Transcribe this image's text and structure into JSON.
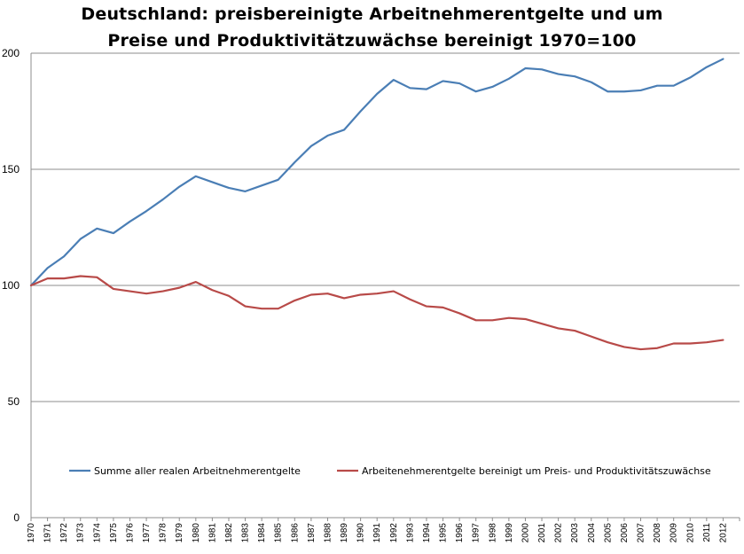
{
  "chart_data": {
    "type": "line",
    "title_line1": "Deutschland: preisbereinigte  Arbeitnehmerentgelte  und um",
    "title_line2": "Preise  und  Produktivitätzuwächse  bereinigt  1970=100",
    "xlabel": "",
    "ylabel": "",
    "ylim": [
      0,
      200
    ],
    "yticks": [
      "0",
      "50",
      "100",
      "150",
      "200"
    ],
    "grid": "horizontal",
    "legend_placement": "bottom",
    "x": [
      "1970",
      "1971",
      "1972",
      "1973",
      "1974",
      "1975",
      "1976",
      "1977",
      "1978",
      "1979",
      "1980",
      "1981",
      "1982",
      "1983",
      "1984",
      "1985",
      "1986",
      "1987",
      "1988",
      "1989",
      "1990",
      "1991",
      "1992",
      "1993",
      "1994",
      "1995",
      "1996",
      "1997",
      "1998",
      "1999",
      "2000",
      "2001",
      "2002",
      "2003",
      "2004",
      "2005",
      "2006",
      "2007",
      "2008",
      "2009",
      "2010",
      "2011",
      "2012"
    ],
    "series": [
      {
        "name": "Summe aller realen Arbeitnehmerentgelte",
        "color": "#4a7eb5",
        "values": [
          100,
          107.5,
          112.5,
          120,
          124.5,
          122.5,
          127.5,
          132,
          137,
          142.5,
          147,
          144.5,
          142,
          140.5,
          143,
          145.5,
          153,
          160,
          164.5,
          167,
          175,
          182.5,
          188.5,
          185,
          184.5,
          188,
          187,
          183.5,
          185.5,
          189,
          193.5,
          193,
          191,
          190,
          187.5,
          183.5,
          183.5,
          184,
          186,
          186,
          189.5,
          194,
          197.5
        ]
      },
      {
        "name": "Arbeitenehmerentgelte bereinigt um Preis- und Produktivitätszuwächse",
        "color": "#b84a48",
        "values": [
          100,
          103,
          103,
          104,
          103.5,
          98.5,
          97.5,
          96.5,
          97.5,
          99,
          101.5,
          98,
          95.5,
          91,
          90,
          90,
          93.5,
          96,
          96.5,
          94.5,
          96,
          96.5,
          97.5,
          94,
          91,
          90.5,
          88,
          85,
          85,
          86,
          85.5,
          83.5,
          81.5,
          80.5,
          78,
          75.5,
          73.5,
          72.5,
          73,
          75,
          75,
          75.5,
          76.5
        ]
      }
    ]
  }
}
